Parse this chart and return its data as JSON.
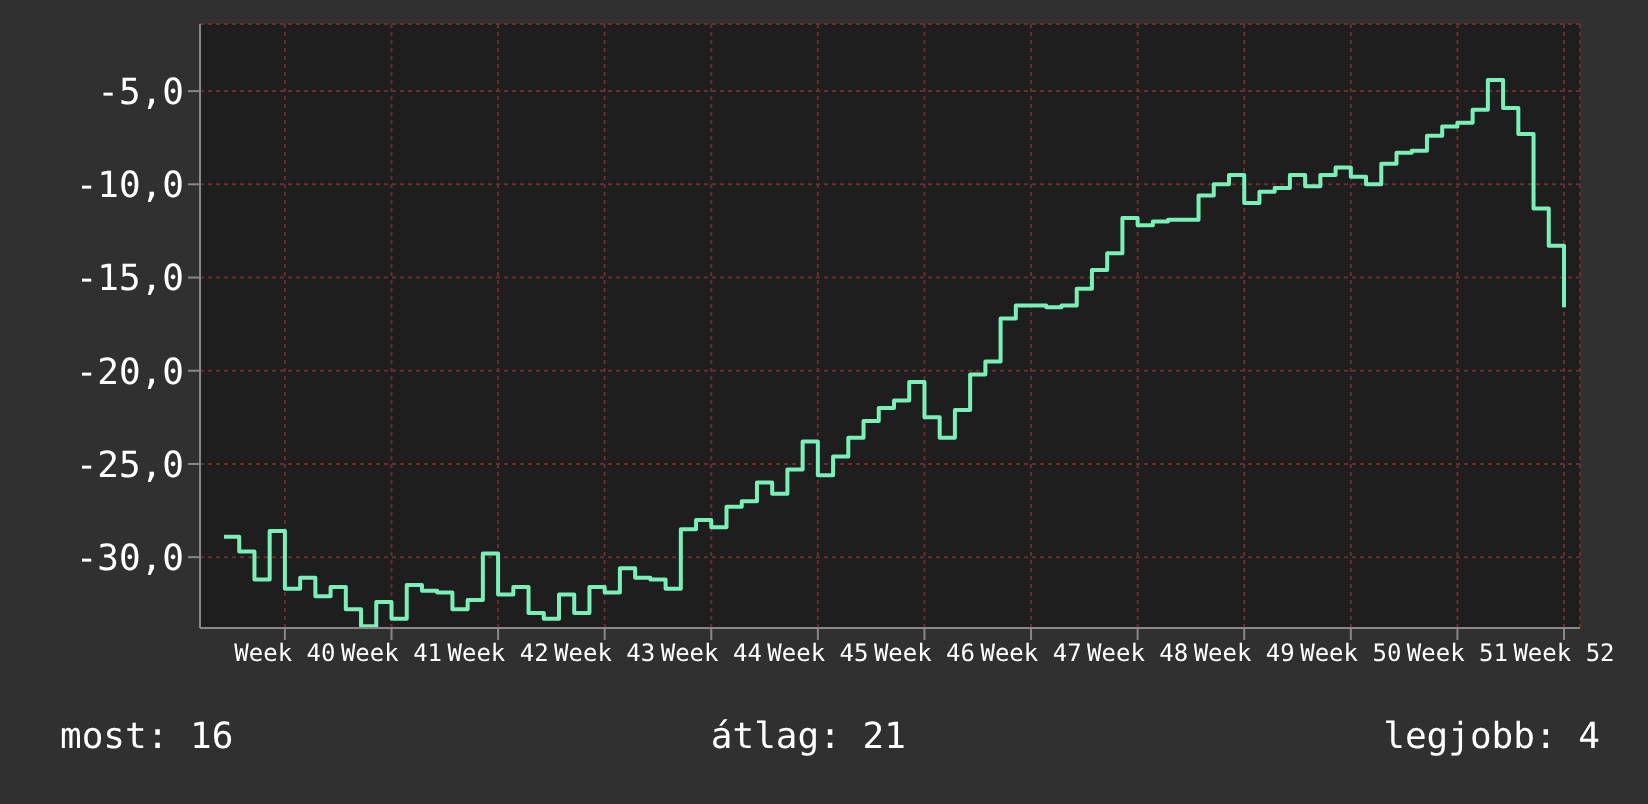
{
  "chart_data": {
    "type": "step",
    "color": "#7af0b8",
    "categories": [
      null,
      null,
      null,
      null,
      "Week 40",
      null,
      null,
      null,
      null,
      null,
      null,
      "Week 41",
      null,
      null,
      null,
      null,
      null,
      null,
      "Week 42",
      null,
      null,
      null,
      null,
      null,
      null,
      "Week 43",
      null,
      null,
      null,
      null,
      null,
      null,
      "Week 44",
      null,
      null,
      null,
      null,
      null,
      null,
      "Week 45",
      null,
      null,
      null,
      null,
      null,
      null,
      "Week 46",
      null,
      null,
      null,
      null,
      null,
      null,
      "Week 47",
      null,
      null,
      null,
      null,
      null,
      null,
      "Week 48",
      null,
      null,
      null,
      null,
      null,
      null,
      "Week 49",
      null,
      null,
      null,
      null,
      null,
      null,
      "Week 50",
      null,
      null,
      null,
      null,
      null,
      null,
      "Week 51",
      null,
      null,
      null,
      null,
      null,
      null,
      "Week 52"
    ],
    "values": [
      -28.9,
      -29.7,
      -31.2,
      -28.6,
      -31.7,
      -31.1,
      -32.1,
      -31.6,
      -32.8,
      -33.7,
      -32.4,
      -33.3,
      -31.5,
      -31.8,
      -31.9,
      -32.8,
      -32.3,
      -29.8,
      -32.0,
      -31.6,
      -33.0,
      -33.3,
      -32.0,
      -33.0,
      -31.6,
      -31.9,
      -30.6,
      -31.1,
      -31.2,
      -31.7,
      -28.5,
      -28.0,
      -28.4,
      -27.3,
      -27.0,
      -26.0,
      -26.6,
      -25.3,
      -23.8,
      -25.6,
      -24.6,
      -23.6,
      -22.7,
      -22.0,
      -21.6,
      -20.6,
      -22.5,
      -23.6,
      -22.1,
      -20.2,
      -19.5,
      -17.2,
      -16.5,
      -16.5,
      -16.6,
      -16.5,
      -15.6,
      -14.6,
      -13.7,
      -11.8,
      -12.2,
      -12.0,
      -11.9,
      -11.9,
      -10.6,
      -10.0,
      -9.5,
      -11.0,
      -10.4,
      -10.2,
      -9.5,
      -10.1,
      -9.5,
      -9.1,
      -9.6,
      -10.0,
      -8.9,
      -8.3,
      -8.2,
      -7.4,
      -6.9,
      -6.7,
      -6.0,
      -4.4,
      -5.9,
      -7.3,
      -11.3,
      -13.3,
      -16.6
    ],
    "ylim": [
      -33.8,
      -1.4
    ],
    "yticks": [
      {
        "value": -30,
        "label": "-30,0"
      },
      {
        "value": -25,
        "label": "-25,0"
      },
      {
        "value": -20,
        "label": "-20,0"
      },
      {
        "value": -15,
        "label": "-15,0"
      },
      {
        "value": -10,
        "label": "-10,0"
      },
      {
        "value": -5,
        "label": "-5,0"
      }
    ],
    "grid": true,
    "annotations": [
      "most: 16",
      "átlag: 21",
      "legjobb: 4"
    ]
  }
}
